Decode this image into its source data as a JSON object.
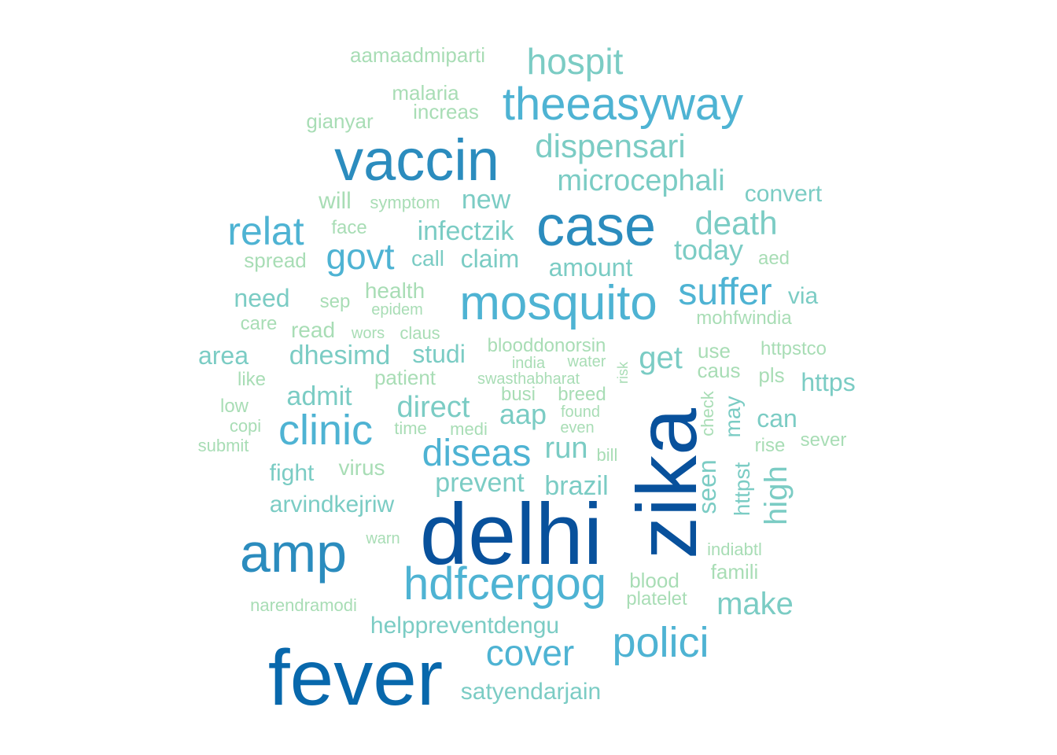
{
  "words": [
    {
      "text": "delhi",
      "color": "#08519c"
    },
    {
      "text": "zika",
      "color": "#08519c"
    },
    {
      "text": "fever",
      "color": "#0868ac"
    },
    {
      "text": "amp",
      "color": "#2b8cbe"
    },
    {
      "text": "case",
      "color": "#2b8cbe"
    },
    {
      "text": "vaccin",
      "color": "#2b8cbe"
    },
    {
      "text": "mosquito",
      "color": "#4eb3d3"
    },
    {
      "text": "theeasyway",
      "color": "#4eb3d3"
    },
    {
      "text": "hdfcergog",
      "color": "#4eb3d3"
    },
    {
      "text": "clinic",
      "color": "#4eb3d3"
    },
    {
      "text": "polici",
      "color": "#4eb3d3"
    },
    {
      "text": "diseas",
      "color": "#4eb3d3"
    },
    {
      "text": "relat",
      "color": "#4eb3d3"
    },
    {
      "text": "govt",
      "color": "#4eb3d3"
    },
    {
      "text": "suffer",
      "color": "#4eb3d3"
    },
    {
      "text": "cover",
      "color": "#4eb3d3"
    },
    {
      "text": "hospit",
      "color": "#7bccc4"
    },
    {
      "text": "dispensari",
      "color": "#7bccc4"
    },
    {
      "text": "microcephali",
      "color": "#7bccc4"
    },
    {
      "text": "death",
      "color": "#7bccc4"
    },
    {
      "text": "high",
      "color": "#7bccc4"
    },
    {
      "text": "make",
      "color": "#7bccc4"
    },
    {
      "text": "infectzik",
      "color": "#7bccc4"
    },
    {
      "text": "new",
      "color": "#7bccc4"
    },
    {
      "text": "today",
      "color": "#7bccc4"
    },
    {
      "text": "amount",
      "color": "#7bccc4"
    },
    {
      "text": "claim",
      "color": "#7bccc4"
    },
    {
      "text": "get",
      "color": "#7bccc4"
    },
    {
      "text": "admit",
      "color": "#7bccc4"
    },
    {
      "text": "dhesimd",
      "color": "#7bccc4"
    },
    {
      "text": "direct",
      "color": "#7bccc4"
    },
    {
      "text": "aap",
      "color": "#7bccc4"
    },
    {
      "text": "run",
      "color": "#7bccc4"
    },
    {
      "text": "prevent",
      "color": "#7bccc4"
    },
    {
      "text": "brazil",
      "color": "#7bccc4"
    },
    {
      "text": "seen",
      "color": "#7bccc4"
    },
    {
      "text": "https",
      "color": "#7bccc4"
    },
    {
      "text": "studi",
      "color": "#7bccc4"
    },
    {
      "text": "area",
      "color": "#7bccc4"
    },
    {
      "text": "need",
      "color": "#7bccc4"
    },
    {
      "text": "convert",
      "color": "#7bccc4"
    },
    {
      "text": "can",
      "color": "#7bccc4"
    },
    {
      "text": "satyendarjain",
      "color": "#7bccc4"
    },
    {
      "text": "helppreventdengu",
      "color": "#7bccc4"
    },
    {
      "text": "arvindkejriw",
      "color": "#7bccc4"
    },
    {
      "text": "fight",
      "color": "#7bccc4"
    },
    {
      "text": "call",
      "color": "#7bccc4"
    },
    {
      "text": "via",
      "color": "#7bccc4"
    },
    {
      "text": "may",
      "color": "#7bccc4"
    },
    {
      "text": "httpst",
      "color": "#7bccc4"
    },
    {
      "text": "aamaadmiparti",
      "color": "#a8ddb5"
    },
    {
      "text": "malaria",
      "color": "#a8ddb5"
    },
    {
      "text": "increas",
      "color": "#a8ddb5"
    },
    {
      "text": "gianyar",
      "color": "#a8ddb5"
    },
    {
      "text": "will",
      "color": "#a8ddb5"
    },
    {
      "text": "symptom",
      "color": "#a8ddb5"
    },
    {
      "text": "face",
      "color": "#a8ddb5"
    },
    {
      "text": "spread",
      "color": "#a8ddb5"
    },
    {
      "text": "health",
      "color": "#a8ddb5"
    },
    {
      "text": "epidem",
      "color": "#a8ddb5"
    },
    {
      "text": "sep",
      "color": "#a8ddb5"
    },
    {
      "text": "care",
      "color": "#a8ddb5"
    },
    {
      "text": "read",
      "color": "#a8ddb5"
    },
    {
      "text": "wors",
      "color": "#a8ddb5"
    },
    {
      "text": "claus",
      "color": "#a8ddb5"
    },
    {
      "text": "blooddonorsin",
      "color": "#a8ddb5"
    },
    {
      "text": "india",
      "color": "#a8ddb5"
    },
    {
      "text": "water",
      "color": "#a8ddb5"
    },
    {
      "text": "risk",
      "color": "#a8ddb5"
    },
    {
      "text": "patient",
      "color": "#a8ddb5"
    },
    {
      "text": "swasthabharat",
      "color": "#a8ddb5"
    },
    {
      "text": "busi",
      "color": "#a8ddb5"
    },
    {
      "text": "breed",
      "color": "#a8ddb5"
    },
    {
      "text": "found",
      "color": "#a8ddb5"
    },
    {
      "text": "even",
      "color": "#a8ddb5"
    },
    {
      "text": "time",
      "color": "#a8ddb5"
    },
    {
      "text": "medi",
      "color": "#a8ddb5"
    },
    {
      "text": "bill",
      "color": "#a8ddb5"
    },
    {
      "text": "virus",
      "color": "#a8ddb5"
    },
    {
      "text": "warn",
      "color": "#a8ddb5"
    },
    {
      "text": "like",
      "color": "#a8ddb5"
    },
    {
      "text": "low",
      "color": "#a8ddb5"
    },
    {
      "text": "copi",
      "color": "#a8ddb5"
    },
    {
      "text": "submit",
      "color": "#a8ddb5"
    },
    {
      "text": "narendramodi",
      "color": "#a8ddb5"
    },
    {
      "text": "blood",
      "color": "#a8ddb5"
    },
    {
      "text": "platelet",
      "color": "#a8ddb5"
    },
    {
      "text": "indiabtl",
      "color": "#a8ddb5"
    },
    {
      "text": "famili",
      "color": "#a8ddb5"
    },
    {
      "text": "use",
      "color": "#a8ddb5"
    },
    {
      "text": "caus",
      "color": "#a8ddb5"
    },
    {
      "text": "httpstco",
      "color": "#a8ddb5"
    },
    {
      "text": "pls",
      "color": "#a8ddb5"
    },
    {
      "text": "check",
      "color": "#a8ddb5"
    },
    {
      "text": "rise",
      "color": "#a8ddb5"
    },
    {
      "text": "sever",
      "color": "#a8ddb5"
    },
    {
      "text": "mohfwindia",
      "color": "#a8ddb5"
    },
    {
      "text": "aed",
      "color": "#a8ddb5"
    }
  ]
}
